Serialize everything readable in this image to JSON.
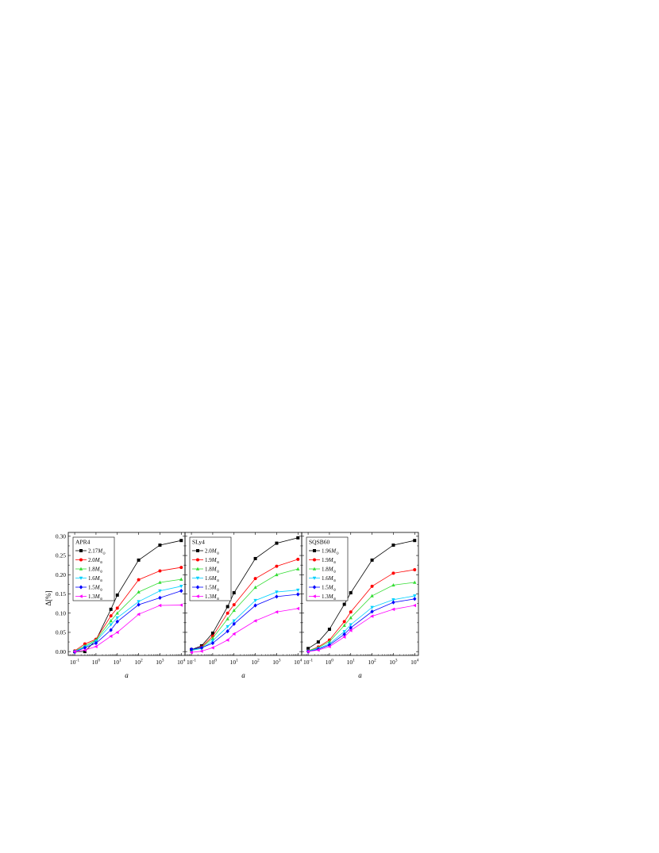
{
  "figure": {
    "ylabel_prefix": "Δ",
    "ylabel_suffix": "[%]",
    "xlabel": "a",
    "yticks": [
      "0.00",
      "0.05",
      "0.10",
      "0.15",
      "0.20",
      "0.25",
      "0.30"
    ],
    "xticks": [
      {
        "base": "10",
        "exp": "-1"
      },
      {
        "base": "10",
        "exp": "0"
      },
      {
        "base": "10",
        "exp": "1"
      },
      {
        "base": "10",
        "exp": "2"
      },
      {
        "base": "10",
        "exp": "3"
      },
      {
        "base": "10",
        "exp": "4"
      }
    ]
  },
  "colors": {
    "black": "#000000",
    "red": "#ff0000",
    "green": "#33dd33",
    "cyan": "#00d0ff",
    "blue": "#0000ff",
    "magenta": "#ff00ff"
  },
  "chart_data": [
    {
      "type": "line",
      "title": "APR4",
      "xlabel": "a",
      "ylabel": "Δ[%]",
      "xscale": "log",
      "xlim": [
        0.05,
        15000
      ],
      "ylim": [
        -0.01,
        0.31
      ],
      "legend_position": "top-left",
      "x": [
        0.1,
        0.3,
        1,
        5,
        10,
        100,
        1000,
        10000
      ],
      "series": [
        {
          "name": "2.17M",
          "sub": "⊙",
          "color": "#000000",
          "marker": "square",
          "values": [
            0.0,
            0.0,
            0.03,
            0.11,
            0.147,
            0.238,
            0.277,
            0.289
          ]
        },
        {
          "name": "2.0M",
          "sub": "⊙",
          "color": "#ff0000",
          "marker": "circle",
          "values": [
            0.002,
            0.02,
            0.032,
            0.093,
            0.113,
            0.187,
            0.21,
            0.219
          ]
        },
        {
          "name": "1.8M",
          "sub": "⊙",
          "color": "#33dd33",
          "marker": "triangle-up",
          "values": [
            0.001,
            0.015,
            0.03,
            0.08,
            0.1,
            0.155,
            0.18,
            0.188
          ]
        },
        {
          "name": "1.6M",
          "sub": "⊙",
          "color": "#00d0ff",
          "marker": "triangle-down",
          "values": [
            0.0,
            0.012,
            0.027,
            0.07,
            0.088,
            0.13,
            0.158,
            0.17
          ]
        },
        {
          "name": "1.5M",
          "sub": "⊙",
          "color": "#0000ff",
          "marker": "diamond",
          "values": [
            -0.001,
            0.01,
            0.022,
            0.056,
            0.078,
            0.122,
            0.14,
            0.158
          ]
        },
        {
          "name": "1.3M",
          "sub": "⊙",
          "color": "#ff00ff",
          "marker": "triangle-left",
          "values": [
            0.0,
            0.004,
            0.013,
            0.04,
            0.05,
            0.097,
            0.12,
            0.121
          ]
        }
      ]
    },
    {
      "type": "line",
      "title": "SLy4",
      "xlabel": "a",
      "ylabel": "Δ[%]",
      "xscale": "log",
      "xlim": [
        0.05,
        15000
      ],
      "ylim": [
        -0.01,
        0.31
      ],
      "legend_position": "top-left",
      "x": [
        0.1,
        0.3,
        1,
        5,
        10,
        100,
        1000,
        10000
      ],
      "series": [
        {
          "name": "2.0M",
          "sub": "⊙",
          "color": "#000000",
          "marker": "square",
          "values": [
            0.005,
            0.015,
            0.048,
            0.117,
            0.153,
            0.242,
            0.282,
            0.296
          ]
        },
        {
          "name": "1.9M",
          "sub": "⊙",
          "color": "#ff0000",
          "marker": "circle",
          "values": [
            0.004,
            0.012,
            0.04,
            0.1,
            0.122,
            0.19,
            0.222,
            0.24
          ]
        },
        {
          "name": "1.8M",
          "sub": "⊙",
          "color": "#33dd33",
          "marker": "triangle-up",
          "values": [
            0.004,
            0.01,
            0.035,
            0.085,
            0.107,
            0.167,
            0.2,
            0.215
          ]
        },
        {
          "name": "1.6M",
          "sub": "⊙",
          "color": "#00d0ff",
          "marker": "triangle-down",
          "values": [
            0.003,
            0.008,
            0.028,
            0.065,
            0.08,
            0.133,
            0.155,
            0.16
          ]
        },
        {
          "name": "1.5M",
          "sub": "⊙",
          "color": "#0000ff",
          "marker": "diamond",
          "values": [
            0.006,
            0.01,
            0.022,
            0.053,
            0.072,
            0.12,
            0.143,
            0.149
          ]
        },
        {
          "name": "1.3M",
          "sub": "⊙",
          "color": "#ff00ff",
          "marker": "triangle-left",
          "values": [
            -0.002,
            0.001,
            0.01,
            0.03,
            0.046,
            0.08,
            0.103,
            0.112
          ]
        }
      ]
    },
    {
      "type": "line",
      "title": "SQSB60",
      "xlabel": "a",
      "ylabel": "Δ[%]",
      "xscale": "log",
      "xlim": [
        0.05,
        15000
      ],
      "ylim": [
        -0.01,
        0.31
      ],
      "legend_position": "top-left",
      "x": [
        0.1,
        0.3,
        1,
        5,
        10,
        100,
        1000,
        10000
      ],
      "series": [
        {
          "name": "1.96M",
          "sub": "⊙",
          "color": "#000000",
          "marker": "square",
          "values": [
            0.008,
            0.025,
            0.058,
            0.123,
            0.153,
            0.238,
            0.277,
            0.289
          ]
        },
        {
          "name": "1.9M",
          "sub": "⊙",
          "color": "#ff0000",
          "marker": "circle",
          "values": [
            0.002,
            0.012,
            0.03,
            0.078,
            0.103,
            0.17,
            0.204,
            0.213
          ]
        },
        {
          "name": "1.8M",
          "sub": "⊙",
          "color": "#33dd33",
          "marker": "triangle-up",
          "values": [
            0.002,
            0.01,
            0.026,
            0.068,
            0.088,
            0.145,
            0.173,
            0.18
          ]
        },
        {
          "name": "1.6M",
          "sub": "⊙",
          "color": "#00d0ff",
          "marker": "triangle-down",
          "values": [
            0.001,
            0.008,
            0.02,
            0.052,
            0.07,
            0.115,
            0.135,
            0.145
          ]
        },
        {
          "name": "1.5M",
          "sub": "⊙",
          "color": "#0000ff",
          "marker": "diamond",
          "values": [
            0.0,
            0.006,
            0.017,
            0.045,
            0.062,
            0.104,
            0.128,
            0.137
          ]
        },
        {
          "name": "1.3M",
          "sub": "⊙",
          "color": "#ff00ff",
          "marker": "triangle-left",
          "values": [
            0.0,
            0.004,
            0.013,
            0.038,
            0.055,
            0.092,
            0.11,
            0.12
          ]
        }
      ]
    }
  ]
}
